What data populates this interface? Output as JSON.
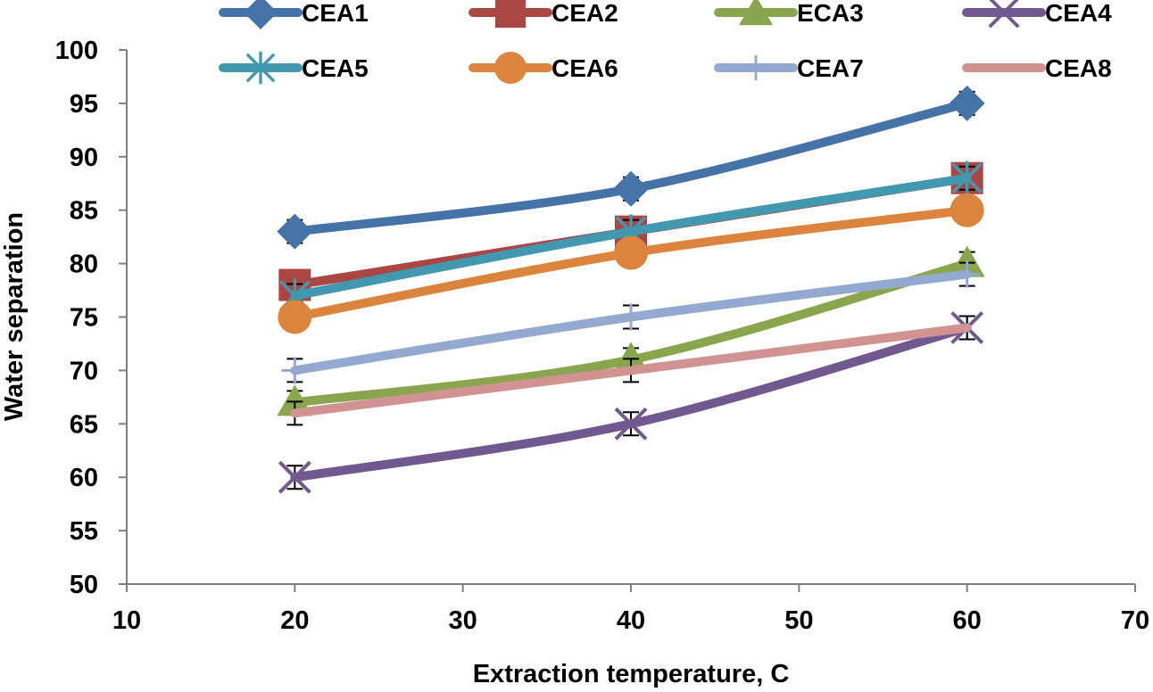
{
  "chart_data": {
    "type": "line",
    "title": "",
    "xlabel": "Extraction temperature, C",
    "ylabel": "Water separation",
    "xlim": [
      10,
      70
    ],
    "ylim": [
      50,
      100
    ],
    "xticks": [
      10,
      20,
      30,
      40,
      50,
      60,
      70
    ],
    "yticks": [
      50,
      55,
      60,
      65,
      70,
      75,
      80,
      85,
      90,
      95,
      100
    ],
    "grid": false,
    "legend_position": "top",
    "x": [
      20,
      40,
      60
    ],
    "series": [
      {
        "name": "CEA1",
        "values": [
          83,
          87,
          95
        ],
        "color": "#4572A7",
        "marker": "diamond"
      },
      {
        "name": "CEA2",
        "values": [
          78,
          83,
          88
        ],
        "color": "#AA4643",
        "marker": "square"
      },
      {
        "name": "ECA3",
        "values": [
          67,
          71,
          80
        ],
        "color": "#89A54E",
        "marker": "triangle"
      },
      {
        "name": "CEA4",
        "values": [
          60,
          65,
          74
        ],
        "color": "#71588F",
        "marker": "x"
      },
      {
        "name": "CEA5",
        "values": [
          77,
          83,
          88
        ],
        "color": "#4198AF",
        "marker": "asterisk"
      },
      {
        "name": "CEA6",
        "values": [
          75,
          81,
          85
        ],
        "color": "#DB843D",
        "marker": "circle"
      },
      {
        "name": "CEA7",
        "values": [
          70,
          75,
          79
        ],
        "color": "#93A9CF",
        "marker": "plus"
      },
      {
        "name": "CEA8",
        "values": [
          66,
          70,
          74
        ],
        "color": "#D19392",
        "marker": "none"
      }
    ]
  }
}
